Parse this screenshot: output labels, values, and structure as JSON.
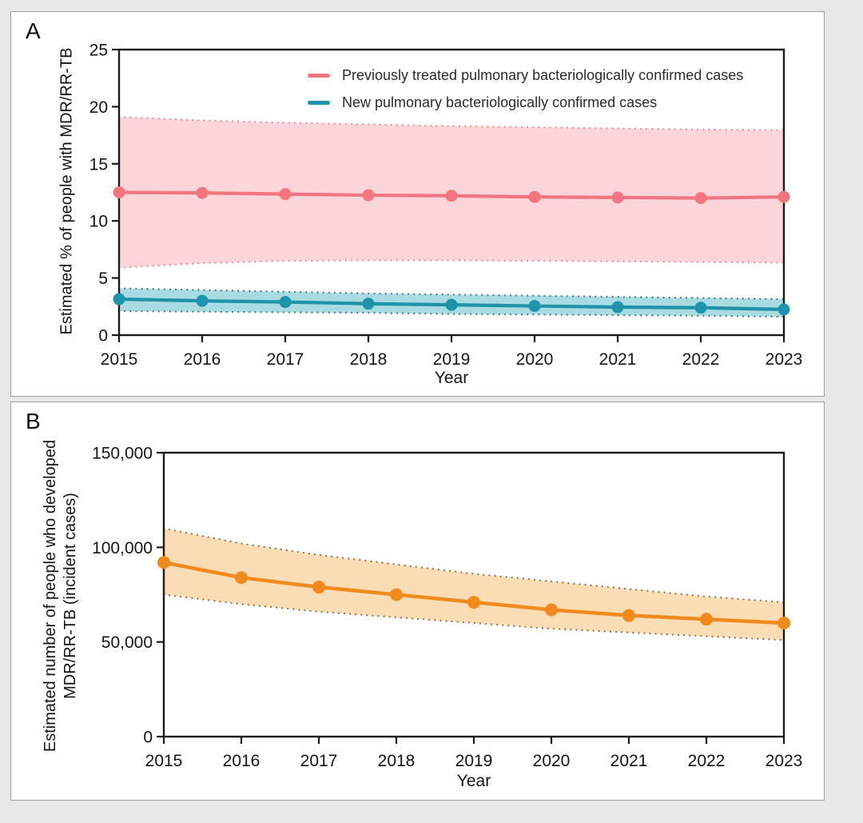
{
  "figure": {
    "panels": [
      {
        "letter": "A",
        "y_title_lines": [
          "Estimated % of people with MDR/RR-TB"
        ],
        "x_title": "Year"
      },
      {
        "letter": "B",
        "y_title_lines": [
          "Estimated number of people who developed",
          "MDR/RR-TB (incident cases)"
        ],
        "x_title": "Year"
      }
    ]
  },
  "chart_data": [
    {
      "type": "line",
      "panel": "A",
      "xlabel": "Year",
      "ylabel": "Estimated % of people with MDR/RR-TB",
      "x": [
        2015,
        2016,
        2017,
        2018,
        2019,
        2020,
        2021,
        2022,
        2023
      ],
      "xtick_labels": [
        "2015",
        "2016",
        "2017",
        "2018",
        "2019",
        "2020",
        "2021",
        "2022",
        "2023"
      ],
      "ylim": [
        0,
        25
      ],
      "yticks": [
        0,
        5,
        10,
        15,
        20,
        25
      ],
      "ytick_labels": [
        "0",
        "5",
        "10",
        "15",
        "20",
        "25"
      ],
      "grid": false,
      "legend_position": "inside-top-center",
      "band_style": "shaded area with dotted edges (95% uncertainty interval)",
      "series": [
        {
          "name": "Previously treated pulmonary bacteriologically confirmed cases",
          "color": "#F2767F",
          "fill": "#FBD5D9",
          "edge_color": "#E9939F",
          "values": [
            12.5,
            12.45,
            12.35,
            12.25,
            12.2,
            12.1,
            12.05,
            12.0,
            12.1
          ],
          "band_upper": [
            19.1,
            18.8,
            18.6,
            18.45,
            18.3,
            18.2,
            18.1,
            18.0,
            17.95
          ],
          "band_lower": [
            5.9,
            6.3,
            6.5,
            6.55,
            6.55,
            6.5,
            6.45,
            6.4,
            6.35
          ]
        },
        {
          "name": "New pulmonary bacteriologically confirmed cases",
          "color": "#1E93A9",
          "fill": "#A9DBE3",
          "edge_color": "#4D7E8A",
          "values": [
            3.15,
            3.0,
            2.9,
            2.75,
            2.65,
            2.55,
            2.45,
            2.4,
            2.25
          ],
          "band_upper": [
            4.1,
            3.95,
            3.8,
            3.65,
            3.55,
            3.45,
            3.35,
            3.25,
            3.15
          ],
          "band_lower": [
            2.1,
            2.05,
            2.0,
            1.95,
            1.85,
            1.8,
            1.75,
            1.7,
            1.6
          ]
        }
      ]
    },
    {
      "type": "line",
      "panel": "B",
      "xlabel": "Year",
      "ylabel": "Estimated number of people who developed MDR/RR-TB (incident cases)",
      "x": [
        2015,
        2016,
        2017,
        2018,
        2019,
        2020,
        2021,
        2022,
        2023
      ],
      "xtick_labels": [
        "2015",
        "2016",
        "2017",
        "2018",
        "2019",
        "2020",
        "2021",
        "2022",
        "2023"
      ],
      "ylim": [
        0,
        150000
      ],
      "yticks": [
        0,
        50000,
        100000,
        150000
      ],
      "ytick_labels": [
        "0",
        "50,000",
        "100,000",
        "150,000"
      ],
      "grid": false,
      "legend_position": "none",
      "band_style": "shaded area with dotted edges (95% uncertainty interval)",
      "series": [
        {
          "color": "#F18A1D",
          "fill": "#FBDDB5",
          "edge_color": "#8F7A5C",
          "values": [
            92000,
            84000,
            79000,
            75000,
            71000,
            67000,
            64000,
            62000,
            60000
          ],
          "band_upper": [
            110000,
            102000,
            96000,
            91000,
            86000,
            82000,
            78000,
            74000,
            71000
          ],
          "band_lower": [
            75000,
            70000,
            66000,
            63000,
            60000,
            57000,
            55000,
            53000,
            51000
          ]
        }
      ]
    }
  ]
}
